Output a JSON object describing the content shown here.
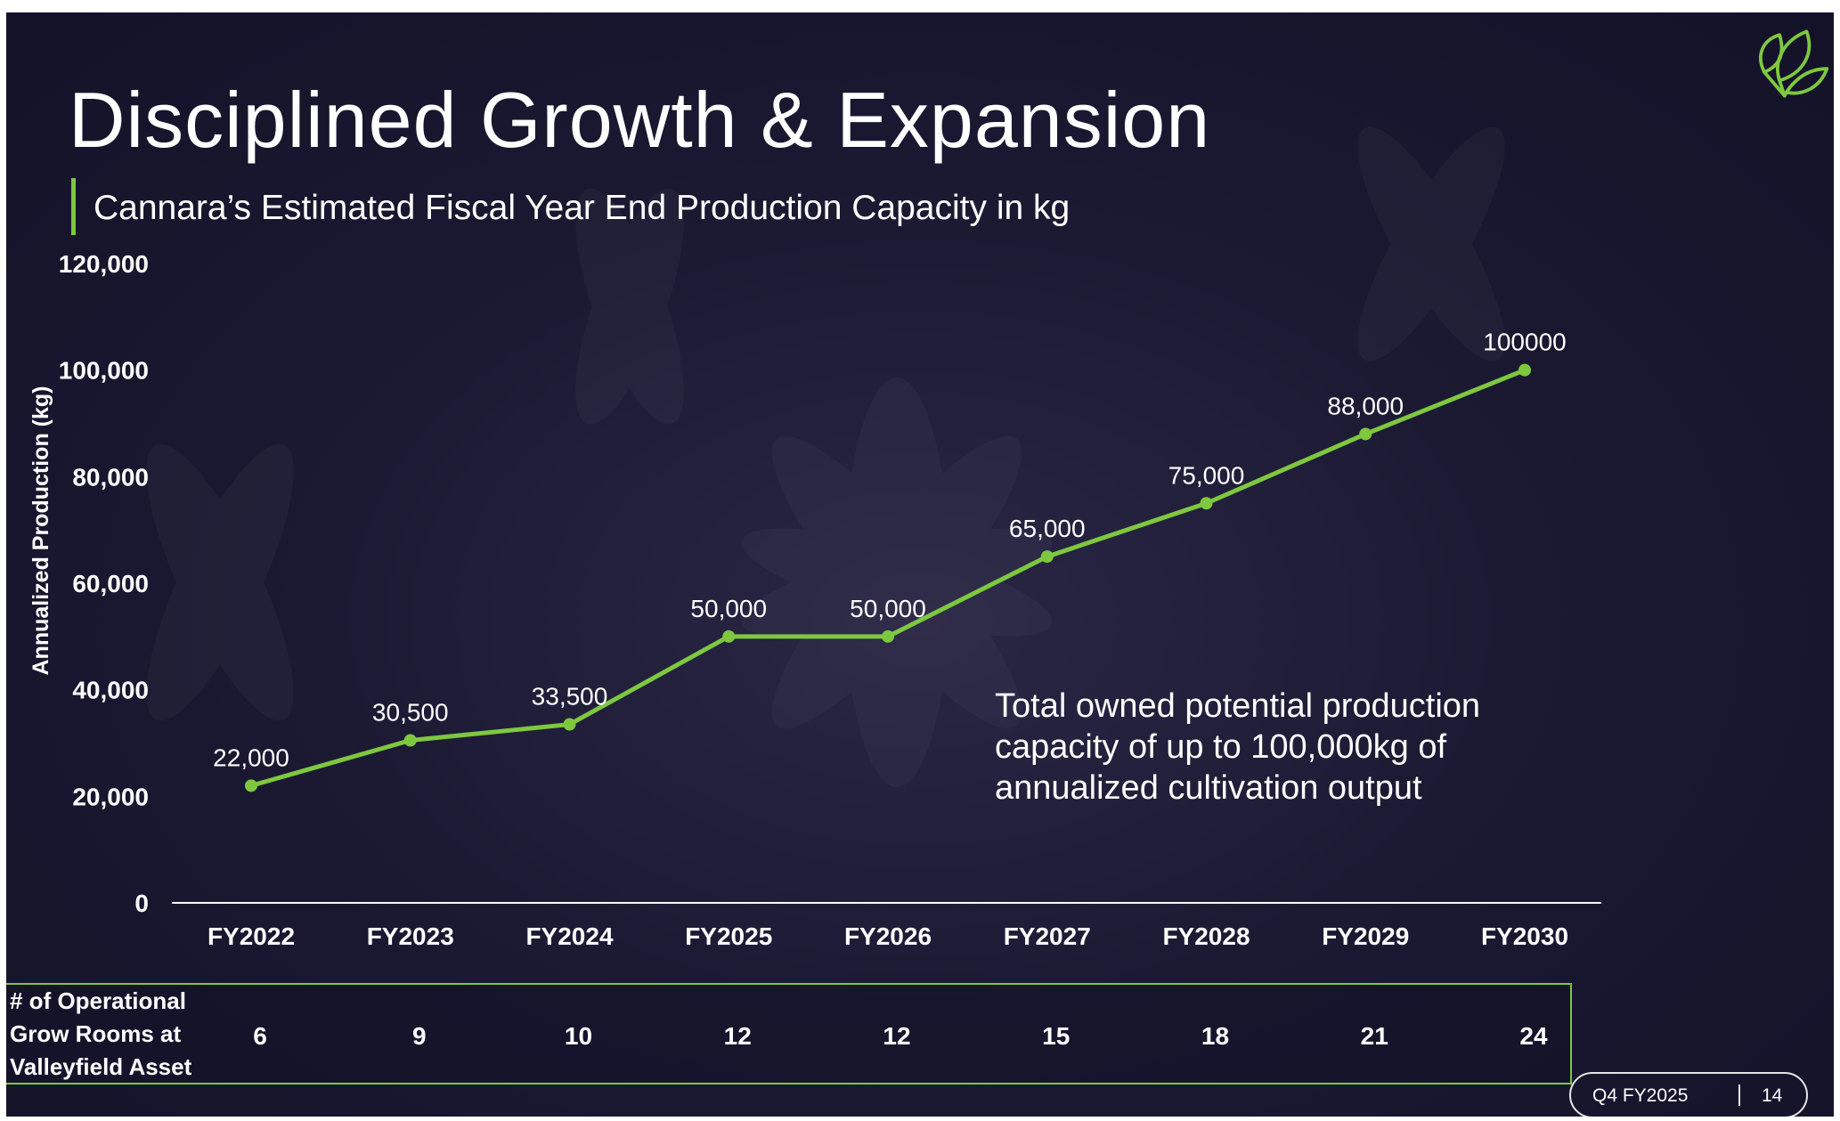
{
  "slide": {
    "title": "Disciplined Growth & Expansion",
    "subtitle": "Cannara’s Estimated Fiscal Year End Production Capacity in kg",
    "note": "Total owned potential production capacity of up to 100,000kg of annualized cultivation output",
    "footer_period": "Q4 FY2025",
    "footer_page": "14",
    "logo_icon": "leaf-logo-icon",
    "colors": {
      "accent": "#7ec83f",
      "background": "#1c1a33",
      "text": "#ffffff"
    }
  },
  "chart_data": {
    "type": "line",
    "title": "Cannara’s Estimated Fiscal Year End Production Capacity in kg",
    "xlabel": "",
    "ylabel": "Annualized Production (kg)",
    "ylim": [
      0,
      120000
    ],
    "yticks": [
      0,
      20000,
      40000,
      60000,
      80000,
      100000,
      120000
    ],
    "ytick_labels": [
      "0",
      "20,000",
      "40,000",
      "60,000",
      "80,000",
      "100,000",
      "120,000"
    ],
    "grid": false,
    "categories": [
      "FY2022",
      "FY2023",
      "FY2024",
      "FY2025",
      "FY2026",
      "FY2027",
      "FY2028",
      "FY2029",
      "FY2030"
    ],
    "series": [
      {
        "name": "Production Capacity (kg)",
        "color": "#7ec83f",
        "values": [
          22000,
          30500,
          33500,
          50000,
          50000,
          65000,
          75000,
          88000,
          100000
        ],
        "labels": [
          "22,000",
          "30,500",
          "33,500",
          "50,000",
          "50,000",
          "65,000",
          "75,000",
          "88,000",
          "100000"
        ]
      }
    ]
  },
  "grow_rooms": {
    "label": "# of Operational Grow Rooms at Valleyfield Asset",
    "values": [
      "6",
      "9",
      "10",
      "12",
      "12",
      "15",
      "18",
      "21",
      "24"
    ]
  }
}
